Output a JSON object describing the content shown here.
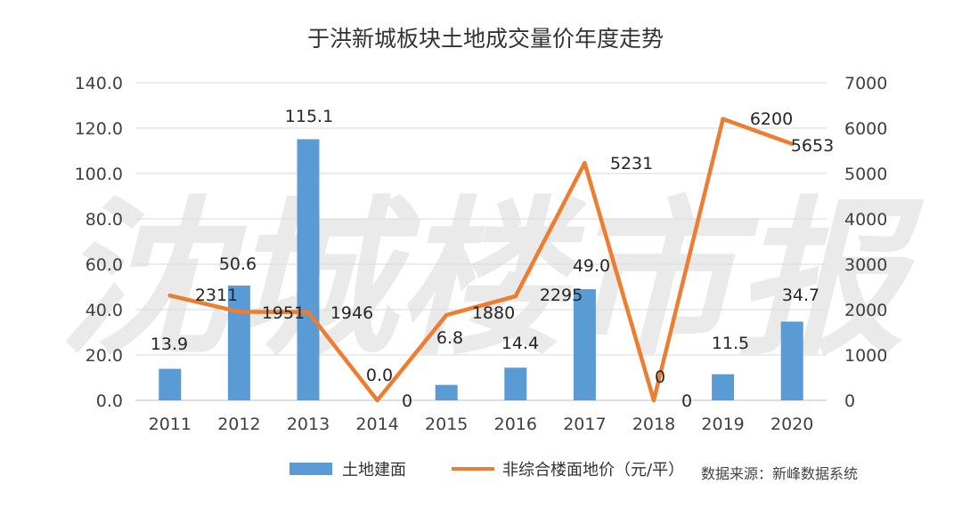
{
  "chart_data": {
    "type": "bar",
    "title": "于洪新城板块土地成交量价年度走势",
    "categories": [
      "2011",
      "2012",
      "2013",
      "2014",
      "2015",
      "2016",
      "2017",
      "2018",
      "2019",
      "2020"
    ],
    "series": [
      {
        "name": "土地建面",
        "type": "bar",
        "axis": "left",
        "color": "#5B9BD5",
        "values": [
          13.9,
          50.6,
          115.1,
          0.0,
          6.8,
          14.4,
          49.0,
          0.0,
          11.5,
          34.7
        ],
        "labels": [
          "13.9",
          "50.6",
          "115.1",
          "0.0",
          "6.8",
          "14.4",
          "49.0",
          "",
          "11.5",
          "34.7"
        ]
      },
      {
        "name": "非综合楼面地价（元/平）",
        "type": "line",
        "axis": "right",
        "color": "#ED7D31",
        "values": [
          2311,
          1951,
          1946,
          0,
          1880,
          2295,
          5231,
          0,
          6200,
          5653
        ],
        "labels": [
          "2311",
          "1951",
          "1946",
          "0",
          "1880",
          "2295",
          "5231",
          "0",
          "6200",
          "5653"
        ]
      }
    ],
    "y_left": {
      "min": 0,
      "max": 140,
      "step": 20,
      "ticks": [
        "0.0",
        "20.0",
        "40.0",
        "60.0",
        "80.0",
        "100.0",
        "120.0",
        "140.0"
      ]
    },
    "y_right": {
      "min": 0,
      "max": 7000,
      "step": 1000,
      "ticks": [
        "0",
        "1000",
        "2000",
        "3000",
        "4000",
        "5000",
        "6000",
        "7000"
      ]
    },
    "grid": true,
    "legend": "bottom",
    "extra_label": "0"
  },
  "source_note": "数据来源：新峰数据系统",
  "watermark": "沈城楼市报"
}
